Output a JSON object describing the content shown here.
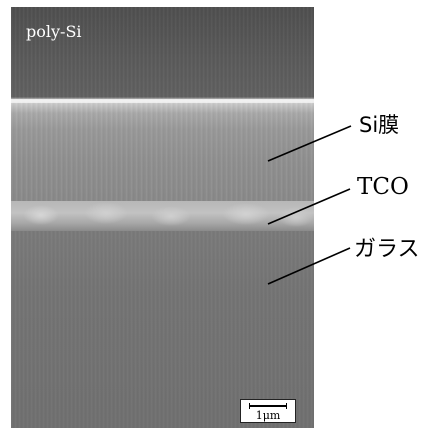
{
  "figure": {
    "sample_label": "poly-Si",
    "scale_bar_label": "1μm",
    "layer_labels": {
      "si_film": "Si膜",
      "tco": "TCO",
      "glass": "ガラス"
    }
  }
}
